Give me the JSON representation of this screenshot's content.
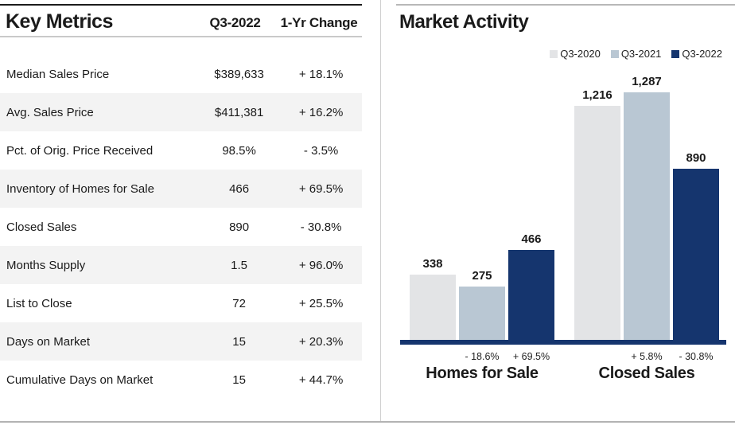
{
  "left_panel": {
    "title": "Key Metrics",
    "columns": {
      "period": "Q3-2022",
      "change": "1-Yr Change"
    },
    "rows": [
      {
        "label": "Median Sales Price",
        "value": "$389,633",
        "change": "+ 18.1%"
      },
      {
        "label": "Avg. Sales Price",
        "value": "$411,381",
        "change": "+ 16.2%"
      },
      {
        "label": "Pct. of Orig. Price Received",
        "value": "98.5%",
        "change": "- 3.5%"
      },
      {
        "label": "Inventory of Homes for Sale",
        "value": "466",
        "change": "+ 69.5%"
      },
      {
        "label": "Closed Sales",
        "value": "890",
        "change": "- 30.8%"
      },
      {
        "label": "Months Supply",
        "value": "1.5",
        "change": "+ 96.0%"
      },
      {
        "label": "List to Close",
        "value": "72",
        "change": "+ 25.5%"
      },
      {
        "label": "Days on Market",
        "value": "15",
        "change": "+ 20.3%"
      },
      {
        "label": "Cumulative Days on Market",
        "value": "15",
        "change": "+ 44.7%"
      }
    ]
  },
  "right_panel": {
    "title": "Market Activity"
  },
  "chart_data": {
    "type": "bar",
    "title": "Market Activity",
    "categories": [
      "Homes for Sale",
      "Closed Sales"
    ],
    "series": [
      {
        "name": "Q3-2020",
        "color": "#e3e4e6",
        "values": [
          338,
          1216
        ],
        "value_labels": [
          "338",
          "1,216"
        ],
        "change_labels": [
          "",
          ""
        ]
      },
      {
        "name": "Q3-2021",
        "color": "#b9c7d3",
        "values": [
          275,
          1287
        ],
        "value_labels": [
          "275",
          "1,287"
        ],
        "change_labels": [
          "- 18.6%",
          "+ 5.8%"
        ]
      },
      {
        "name": "Q3-2022",
        "color": "#15356e",
        "values": [
          466,
          890
        ],
        "value_labels": [
          "466",
          "890"
        ],
        "change_labels": [
          "+ 69.5%",
          "- 30.8%"
        ]
      }
    ],
    "ylim": [
      0,
      1350
    ],
    "grid": false,
    "legend_position": "top-right",
    "axis_color": "#15356e"
  },
  "colors": {
    "text": "#1a1a1a",
    "row_shade": "#f3f3f3",
    "navy_accent": "#15356e",
    "bar_light_gray": "#e3e4e6",
    "bar_blue_gray": "#b9c7d3"
  }
}
